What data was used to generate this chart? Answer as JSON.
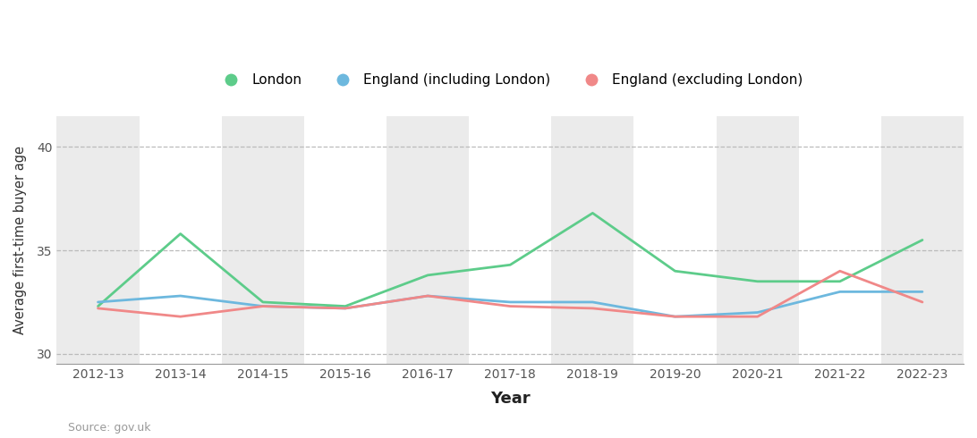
{
  "years": [
    "2012-13",
    "2013-14",
    "2014-15",
    "2015-16",
    "2016-17",
    "2017-18",
    "2018-19",
    "2019-20",
    "2020-21",
    "2021-22",
    "2022-23"
  ],
  "london": [
    32.3,
    35.8,
    32.5,
    32.3,
    33.8,
    34.3,
    36.8,
    34.0,
    33.5,
    33.5,
    35.5
  ],
  "england_inc": [
    32.5,
    32.8,
    32.3,
    32.2,
    32.8,
    32.5,
    32.5,
    31.8,
    32.0,
    33.0,
    33.0
  ],
  "england_exc": [
    32.2,
    31.8,
    32.3,
    32.2,
    32.8,
    32.3,
    32.2,
    31.8,
    31.8,
    34.0,
    32.5
  ],
  "london_color": "#5dcc8a",
  "england_inc_color": "#6db8de",
  "england_exc_color": "#f08888",
  "background_color": "#ffffff",
  "band_color": "#ebebeb",
  "grid_color": "#bbbbbb",
  "ylabel": "Average first-time buyer age",
  "xlabel": "Year",
  "source": "Source: gov.uk",
  "ylim_min": 29.5,
  "ylim_max": 41.5,
  "yticks": [
    30,
    35,
    40
  ],
  "legend_labels": [
    "London",
    "England (including London)",
    "England (excluding London)"
  ],
  "line_width": 2.0
}
